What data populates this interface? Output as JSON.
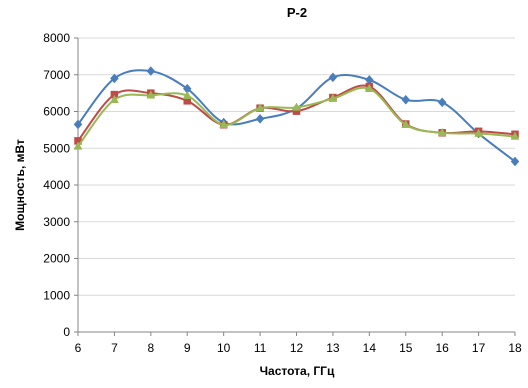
{
  "chart_data": {
    "type": "line",
    "title": "P-2",
    "xlabel": "Частота, ГГц",
    "ylabel": "Мощность, мВт",
    "x": [
      6,
      7,
      8,
      9,
      10,
      11,
      12,
      13,
      14,
      15,
      16,
      17,
      18
    ],
    "xlim": [
      6,
      18
    ],
    "ylim": [
      0,
      8000
    ],
    "yticks": [
      0,
      1000,
      2000,
      3000,
      4000,
      5000,
      6000,
      7000,
      8000
    ],
    "grid": "horizontal",
    "legend": "none",
    "series": [
      {
        "color": "#4a7ebb",
        "marker": "diamond",
        "values": [
          5650,
          6900,
          7100,
          6620,
          5700,
          5800,
          6080,
          6930,
          6860,
          6320,
          6250,
          5400,
          4640
        ]
      },
      {
        "color": "#be4b48",
        "marker": "square",
        "values": [
          5200,
          6460,
          6500,
          6290,
          5640,
          6090,
          6010,
          6380,
          6680,
          5660,
          5420,
          5460,
          5380
        ]
      },
      {
        "color": "#98b954",
        "marker": "triangle",
        "values": [
          5050,
          6320,
          6440,
          6430,
          5640,
          6090,
          6110,
          6350,
          6620,
          5640,
          5420,
          5400,
          5320
        ]
      }
    ]
  }
}
